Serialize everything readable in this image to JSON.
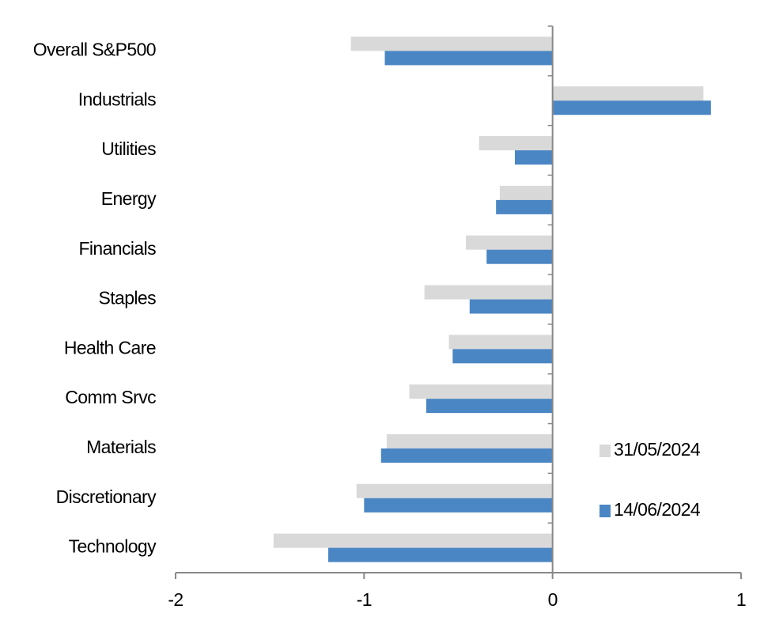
{
  "chart_data": {
    "type": "hbar",
    "categories": [
      "Overall S&P500",
      "Industrials",
      "Utilities",
      "Energy",
      "Financials",
      "Staples",
      "Health Care",
      "Comm Srvc",
      "Materials",
      "Discretionary",
      "Technology"
    ],
    "series": [
      {
        "name": "31/05/2024",
        "color": "#d9d9d9",
        "values": [
          -1.07,
          0.8,
          -0.39,
          -0.28,
          -0.46,
          -0.68,
          -0.55,
          -0.76,
          -0.88,
          -1.04,
          -1.48
        ]
      },
      {
        "name": "14/06/2024",
        "color": "#4a86c4",
        "values": [
          -0.89,
          0.84,
          -0.2,
          -0.3,
          -0.35,
          -0.44,
          -0.53,
          -0.67,
          -0.91,
          -1.0,
          -1.19
        ]
      }
    ],
    "xlim": [
      -2,
      1
    ],
    "xticks": [
      -2,
      -1,
      0,
      1
    ],
    "legend": "right"
  }
}
